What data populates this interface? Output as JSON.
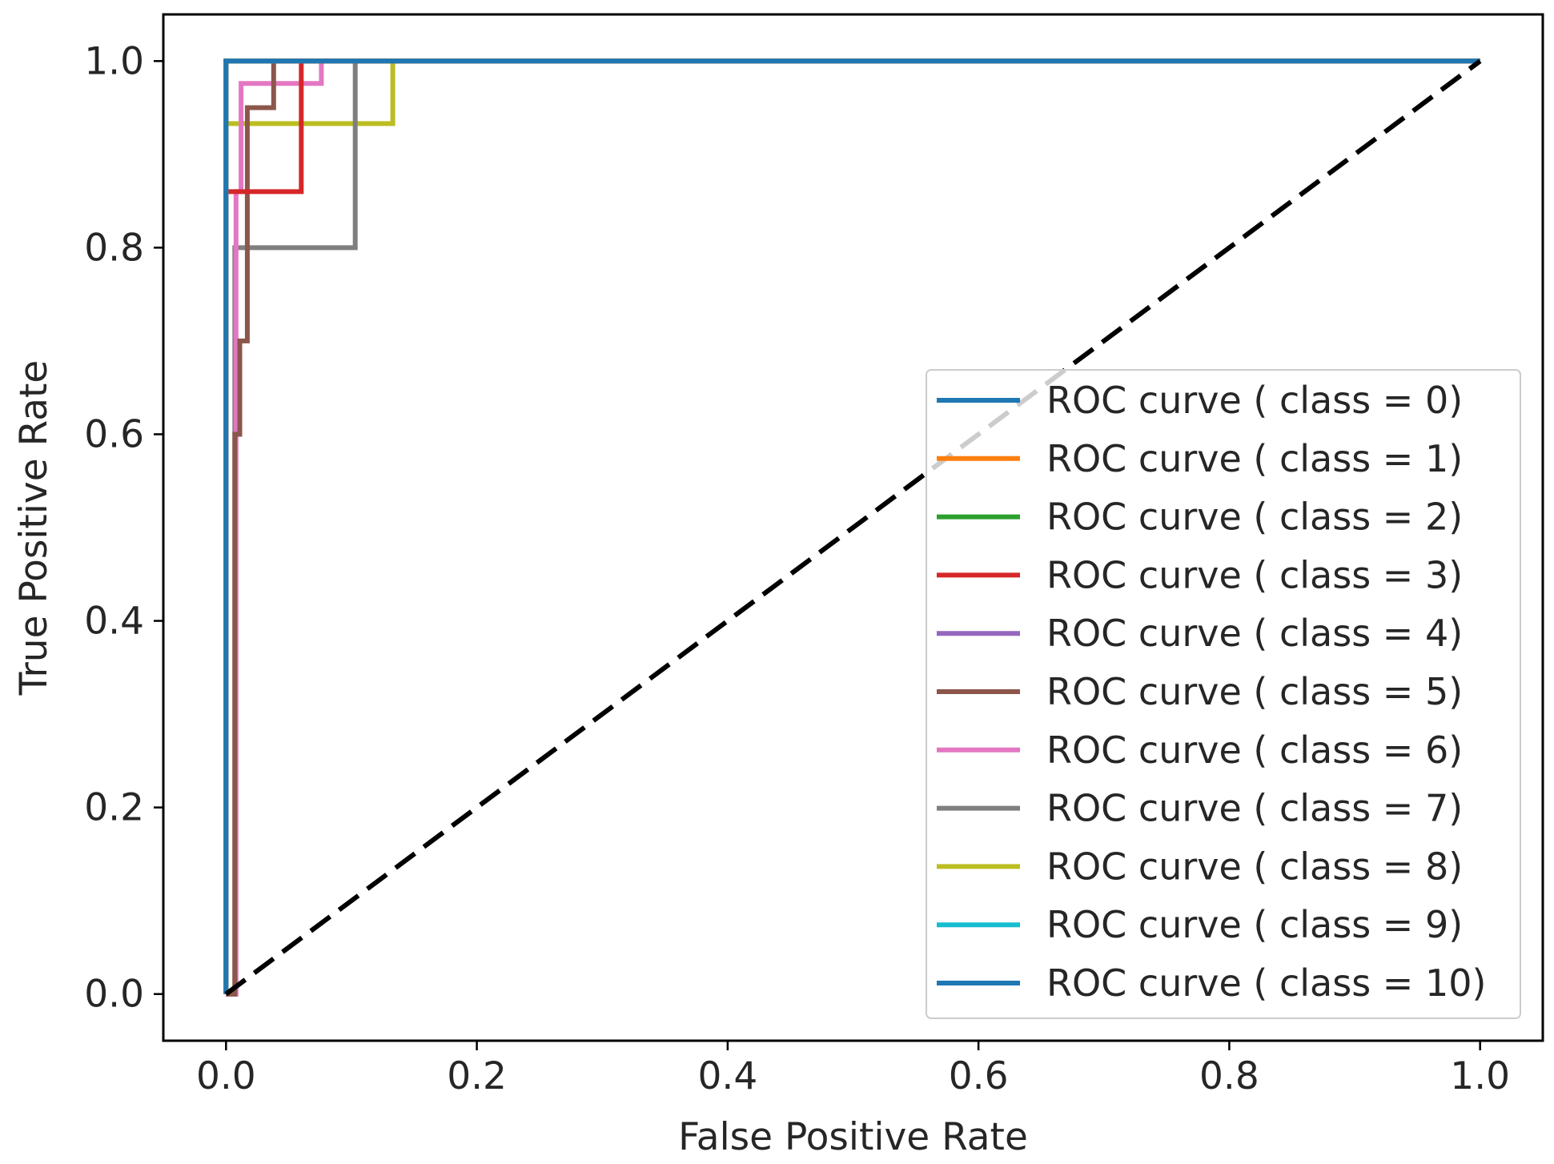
{
  "chart_data": {
    "type": "line",
    "title": "",
    "xlabel": "False Positive Rate",
    "ylabel": "True Positive Rate",
    "xlim": [
      -0.05,
      1.05
    ],
    "ylim": [
      -0.05,
      1.05
    ],
    "xticks": [
      "0.0",
      "0.2",
      "0.4",
      "0.6",
      "0.8",
      "1.0"
    ],
    "yticks": [
      "0.0",
      "0.2",
      "0.4",
      "0.6",
      "0.8",
      "1.0"
    ],
    "legend_position": "lower-right",
    "series": [
      {
        "name": "ROC curve ( class = 0)",
        "color": "#1f77b4",
        "x": [
          0,
          0,
          1
        ],
        "y": [
          0,
          1,
          1
        ]
      },
      {
        "name": "ROC curve ( class = 1)",
        "color": "#ff7f0e",
        "x": [
          0,
          0,
          1
        ],
        "y": [
          0,
          1,
          1
        ]
      },
      {
        "name": "ROC curve ( class = 2)",
        "color": "#2ca02c",
        "x": [
          0,
          0,
          1
        ],
        "y": [
          0,
          1,
          1
        ]
      },
      {
        "name": "ROC curve ( class = 3)",
        "color": "#d62728",
        "x": [
          0,
          0,
          0.02,
          0.02,
          0.06,
          0.06,
          1
        ],
        "y": [
          0,
          0.86,
          0.86,
          0.86,
          0.86,
          1,
          1
        ]
      },
      {
        "name": "ROC curve ( class = 4)",
        "color": "#9467bd",
        "x": [
          0,
          0,
          1
        ],
        "y": [
          0,
          1,
          1
        ]
      },
      {
        "name": "ROC curve ( class = 5)",
        "color": "#8c564b",
        "x": [
          0,
          0.007,
          0.007,
          0.011,
          0.011,
          0.017,
          0.017,
          0.022,
          0.022,
          0.038,
          0.038,
          1
        ],
        "y": [
          0,
          0,
          0.6,
          0.6,
          0.7,
          0.7,
          0.95,
          0.95,
          0.95,
          0.95,
          1,
          1
        ]
      },
      {
        "name": "ROC curve ( class = 6)",
        "color": "#e377c2",
        "x": [
          0,
          0.008,
          0.008,
          0.012,
          0.012,
          0.076,
          0.076,
          1
        ],
        "y": [
          0,
          0,
          0.86,
          0.86,
          0.976,
          0.976,
          1,
          1
        ]
      },
      {
        "name": "ROC curve ( class = 7)",
        "color": "#7f7f7f",
        "x": [
          0,
          0.007,
          0.007,
          0.103,
          0.103,
          1
        ],
        "y": [
          0,
          0,
          0.8,
          0.8,
          1,
          1
        ]
      },
      {
        "name": "ROC curve ( class = 8)",
        "color": "#bcbd22",
        "x": [
          0,
          0,
          0.133,
          0.133,
          1
        ],
        "y": [
          0,
          0.933,
          0.933,
          1,
          1
        ]
      },
      {
        "name": "ROC curve ( class = 9)",
        "color": "#17becf",
        "x": [
          0,
          0,
          1
        ],
        "y": [
          0,
          1,
          1
        ]
      },
      {
        "name": "ROC curve ( class = 10)",
        "color": "#1f77b4",
        "x": [
          0,
          0,
          1
        ],
        "y": [
          0,
          1,
          1
        ]
      }
    ],
    "reference_line": {
      "name": "chance",
      "color": "#000000",
      "style": "dashed",
      "x": [
        0,
        1
      ],
      "y": [
        0,
        1
      ]
    }
  }
}
